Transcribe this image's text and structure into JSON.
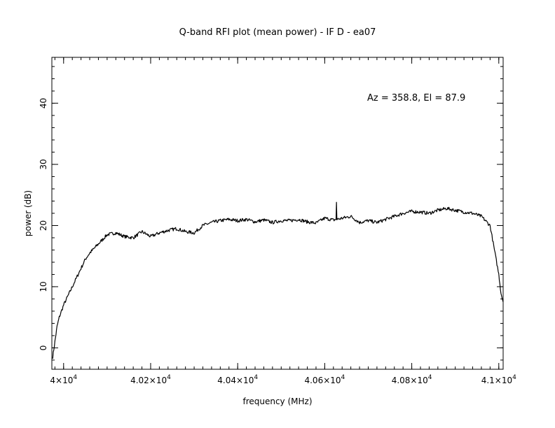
{
  "chart_data": {
    "type": "line",
    "title": "Q-band RFI plot (mean power) - IF D - ea07",
    "xlabel": "frequency (MHz)",
    "ylabel": "power (dB)",
    "annotation": "Az = 358.8, El = 87.9",
    "xlim": [
      39973,
      41010
    ],
    "ylim": [
      -3.5,
      47.5
    ],
    "x_ticks": [
      {
        "value": 40000,
        "label": "4×10",
        "exp": "4"
      },
      {
        "value": 40200,
        "label": "4.02×10",
        "exp": "4"
      },
      {
        "value": 40400,
        "label": "4.04×10",
        "exp": "4"
      },
      {
        "value": 40600,
        "label": "4.06×10",
        "exp": "4"
      },
      {
        "value": 40800,
        "label": "4.08×10",
        "exp": "4"
      },
      {
        "value": 41000,
        "label": "4.1×10",
        "exp": "4"
      }
    ],
    "y_ticks": [
      0,
      10,
      20,
      30,
      40
    ],
    "grid": false,
    "line_color": "#000000",
    "series": [
      {
        "name": "",
        "x": [
          39975,
          39980,
          39985,
          39990,
          40000,
          40010,
          40020,
          40030,
          40040,
          40050,
          40060,
          40080,
          40100,
          40120,
          40140,
          40160,
          40180,
          40200,
          40220,
          40240,
          40260,
          40280,
          40300,
          40320,
          40340,
          40360,
          40380,
          40400,
          40420,
          40440,
          40460,
          40480,
          40500,
          40520,
          40540,
          40560,
          40580,
          40600,
          40620,
          40626,
          40627,
          40628,
          40640,
          40660,
          40680,
          40700,
          40720,
          40740,
          40760,
          40780,
          40800,
          40820,
          40840,
          40860,
          40880,
          40900,
          40920,
          40940,
          40960,
          40980,
          40990,
          41000,
          41005,
          41010
        ],
        "y": [
          -1.5,
          1.0,
          3.5,
          5.0,
          7.0,
          8.5,
          10.0,
          11.5,
          13.0,
          14.5,
          15.5,
          17.0,
          18.5,
          18.8,
          18.2,
          18.0,
          19.0,
          18.2,
          18.8,
          19.2,
          19.5,
          19.0,
          18.8,
          20.0,
          20.5,
          20.8,
          21.0,
          20.8,
          21.0,
          20.6,
          20.9,
          20.5,
          20.8,
          20.8,
          21.0,
          20.6,
          20.4,
          21.2,
          20.9,
          21.0,
          23.8,
          21.0,
          21.2,
          21.5,
          20.5,
          20.8,
          20.5,
          21.0,
          21.5,
          22.0,
          22.3,
          22.2,
          22.0,
          22.5,
          22.8,
          22.5,
          22.2,
          22.0,
          21.5,
          20.0,
          16.0,
          12.0,
          9.0,
          7.5
        ]
      }
    ]
  }
}
